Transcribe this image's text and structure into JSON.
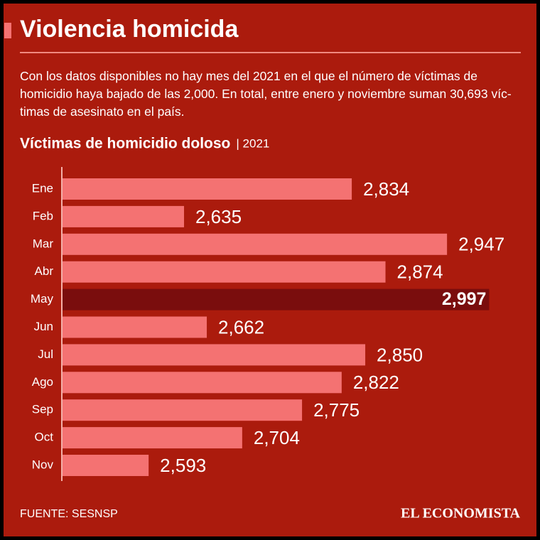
{
  "header": {
    "title": "Violencia homicida",
    "description": "Con los datos disponibles no hay mes del 2021 en el que el número de víctimas de homicidio haya bajado de las 2,000. En total, entre enero y noviembre suman 30,693 víc-timas de asesinato en el país."
  },
  "chart_data": {
    "type": "bar",
    "orientation": "horizontal",
    "title": "Víctimas de homicidio doloso",
    "subtitle": "| 2021",
    "categories": [
      "Ene",
      "Feb",
      "Mar",
      "Abr",
      "May",
      "Jun",
      "Jul",
      "Ago",
      "Sep",
      "Oct",
      "Nov"
    ],
    "values": [
      2834,
      2635,
      2947,
      2874,
      2997,
      2662,
      2850,
      2822,
      2775,
      2704,
      2593
    ],
    "value_labels": [
      "2,834",
      "2,635",
      "2,947",
      "2,874",
      "2,997",
      "2,662",
      "2,850",
      "2,822",
      "2,775",
      "2,704",
      "2,593"
    ],
    "color": "#f47272",
    "highlight": "May",
    "highlight_color": "#7a0d0d",
    "xlim": [
      2490,
      3000
    ]
  },
  "footer": {
    "source": "FUENTE: SESNSP",
    "brand": "EL ECONOMISTA"
  }
}
